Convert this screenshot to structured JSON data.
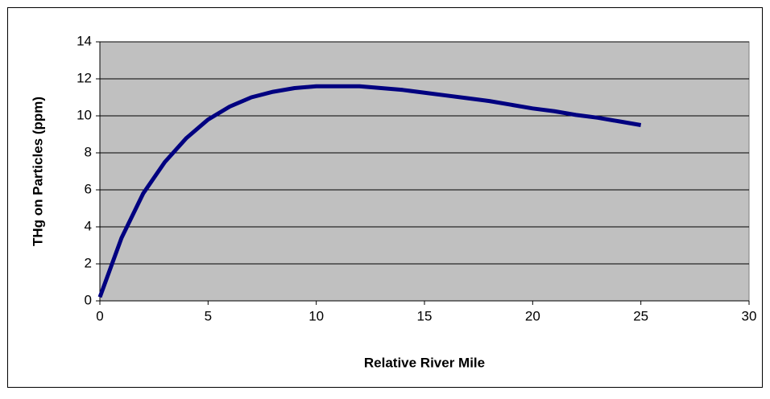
{
  "chart_data": {
    "type": "line",
    "x_label": "Relative River Mile",
    "y_label": "THg on Particles (ppm)",
    "x": [
      0,
      1,
      2,
      3,
      4,
      5,
      6,
      7,
      8,
      9,
      10,
      11,
      12,
      13,
      14,
      15,
      16,
      17,
      18,
      19,
      20,
      21,
      22,
      23,
      24,
      25
    ],
    "series": [
      {
        "name": "THg",
        "color": "#000080",
        "values": [
          0.2,
          3.4,
          5.8,
          7.5,
          8.8,
          9.8,
          10.5,
          11.0,
          11.3,
          11.5,
          11.6,
          11.6,
          11.6,
          11.5,
          11.4,
          11.25,
          11.1,
          10.95,
          10.8,
          10.6,
          10.4,
          10.25,
          10.05,
          9.9,
          9.7,
          9.5
        ]
      }
    ],
    "xlim": [
      0,
      30
    ],
    "xticks": [
      0,
      5,
      10,
      15,
      20,
      25,
      30
    ],
    "ylim": [
      0,
      14
    ],
    "yticks": [
      0,
      2,
      4,
      6,
      8,
      10,
      12,
      14
    ],
    "grid": true,
    "plot_background": "#c0c0c0"
  }
}
